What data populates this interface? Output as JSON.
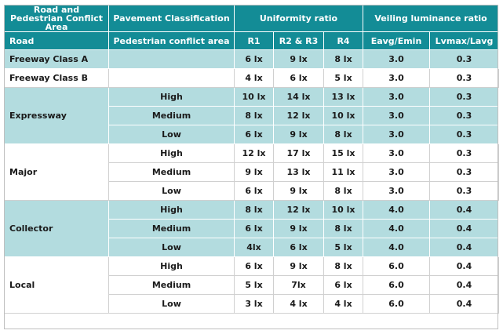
{
  "header": {
    "row1": {
      "area": "Road and Pedestrian Conflict Area",
      "pavement": "Pavement Classification",
      "uniformity": "Uniformity ratio",
      "veiling": "Veiling luminance ratio"
    },
    "row2": {
      "road": "Road",
      "pedestrian": "Pedestrian conflict area",
      "r1": "R1",
      "r23": "R2 & R3",
      "r4": "R4",
      "eavg": "Eavg/Emin",
      "lvmax": "Lvmax/Lavg"
    }
  },
  "rows": [
    {
      "road": "Freeway Class A",
      "conflict": "",
      "r1": "6 lx",
      "r23": "9 lx",
      "r4": "8 lx",
      "eavg": "3.0",
      "lv": "0.3"
    },
    {
      "road": "Freeway Class B",
      "conflict": "",
      "r1": "4 lx",
      "r23": "6 lx",
      "r4": "5 lx",
      "eavg": "3.0",
      "lv": "0.3"
    },
    {
      "road": "Expressway",
      "conflict": "High",
      "r1": "10 lx",
      "r23": "14 lx",
      "r4": "13 lx",
      "eavg": "3.0",
      "lv": "0.3"
    },
    {
      "road": "",
      "conflict": "Medium",
      "r1": "8 lx",
      "r23": "12 lx",
      "r4": "10 lx",
      "eavg": "3.0",
      "lv": "0.3"
    },
    {
      "road": "",
      "conflict": "Low",
      "r1": "6 lx",
      "r23": "9 lx",
      "r4": "8 lx",
      "eavg": "3.0",
      "lv": "0.3"
    },
    {
      "road": "Major",
      "conflict": "High",
      "r1": "12 lx",
      "r23": "17 lx",
      "r4": "15 lx",
      "eavg": "3.0",
      "lv": "0.3"
    },
    {
      "road": "",
      "conflict": "Medium",
      "r1": "9 lx",
      "r23": "13 lx",
      "r4": "11 lx",
      "eavg": "3.0",
      "lv": "0.3"
    },
    {
      "road": "",
      "conflict": "Low",
      "r1": "6 lx",
      "r23": "9 lx",
      "r4": "8 lx",
      "eavg": "3.0",
      "lv": "0.3"
    },
    {
      "road": "Collector",
      "conflict": "High",
      "r1": "8 lx",
      "r23": "12 lx",
      "r4": "10 lx",
      "eavg": "4.0",
      "lv": "0.4"
    },
    {
      "road": "",
      "conflict": "Medium",
      "r1": "6 lx",
      "r23": "9 lx",
      "r4": "8 lx",
      "eavg": "4.0",
      "lv": "0.4"
    },
    {
      "road": "",
      "conflict": "Low",
      "r1": "4lx",
      "r23": "6 lx",
      "r4": "5 lx",
      "eavg": "4.0",
      "lv": "0.4"
    },
    {
      "road": "Local",
      "conflict": "High",
      "r1": "6 lx",
      "r23": "9 lx",
      "r4": "8 lx",
      "eavg": "6.0",
      "lv": "0.4"
    },
    {
      "road": "",
      "conflict": "Medium",
      "r1": "5 lx",
      "r23": "7lx",
      "r4": "6 lx",
      "eavg": "6.0",
      "lv": "0.4"
    },
    {
      "road": "",
      "conflict": "Low",
      "r1": "3 lx",
      "r23": "4 lx",
      "r4": "4 lx",
      "eavg": "6.0",
      "lv": "0.4"
    }
  ],
  "colors": {
    "header_bg": "#138c96",
    "header_text": "#ffffff",
    "band_bg": "#b3dcdf"
  }
}
